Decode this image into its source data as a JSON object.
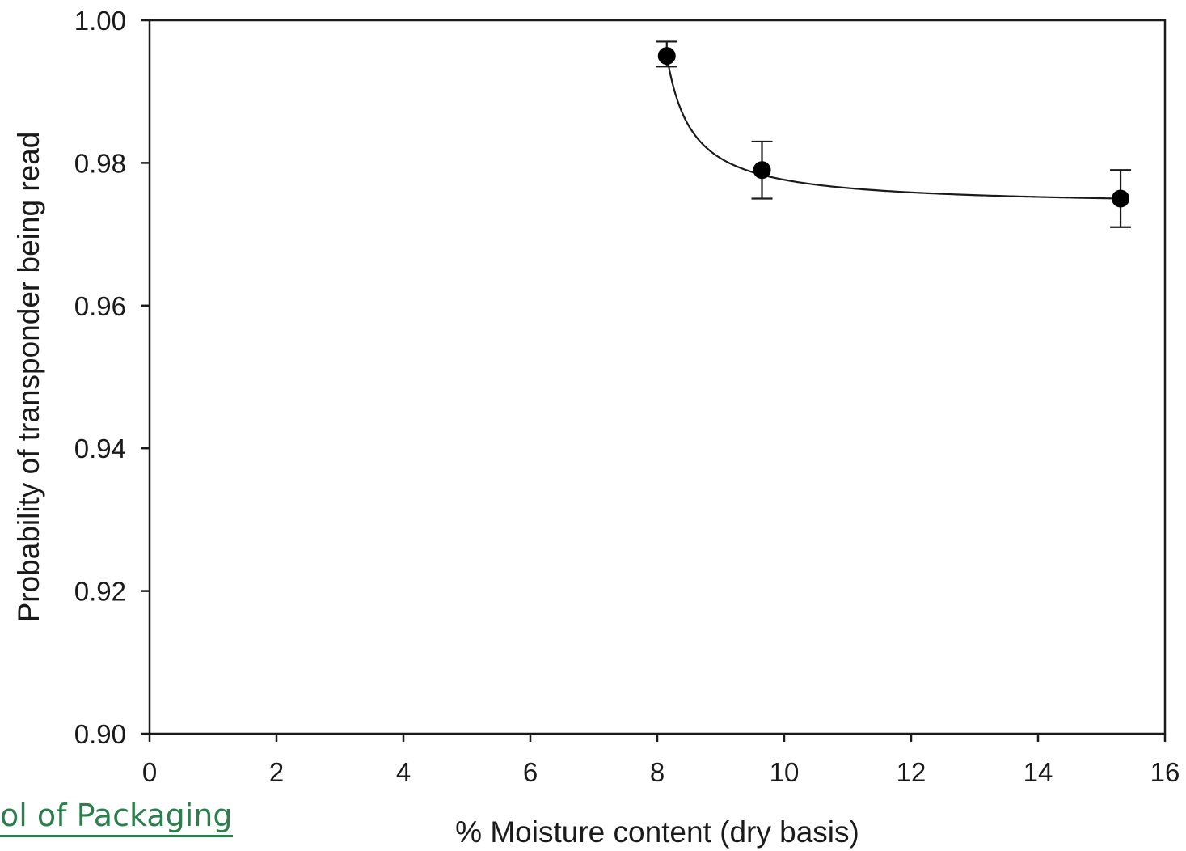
{
  "chart_data": {
    "type": "scatter",
    "title": "",
    "xlabel": "% Moisture content (dry basis)",
    "ylabel": "Probability of transponder being read",
    "xlim": [
      0,
      16
    ],
    "ylim": [
      0.9,
      1.0
    ],
    "x_ticks": [
      "0",
      "2",
      "4",
      "6",
      "8",
      "10",
      "12",
      "14",
      "16"
    ],
    "y_ticks": [
      "0.90",
      "0.92",
      "0.94",
      "0.96",
      "0.98",
      "1.00"
    ],
    "grid": false,
    "legend": "none",
    "points": [
      {
        "x": 8.15,
        "y": 0.995,
        "err_low": 0.9935,
        "err_high": 0.997
      },
      {
        "x": 9.65,
        "y": 0.979,
        "err_low": 0.975,
        "err_high": 0.983
      },
      {
        "x": 15.3,
        "y": 0.975,
        "err_low": 0.971,
        "err_high": 0.979
      }
    ],
    "fit_curve": {
      "description": "smooth fitted curve through points",
      "x_start": 8.15,
      "x_end": 15.3
    }
  },
  "watermark": {
    "text": "ol of Packaging",
    "color": "#2e7d4f"
  }
}
